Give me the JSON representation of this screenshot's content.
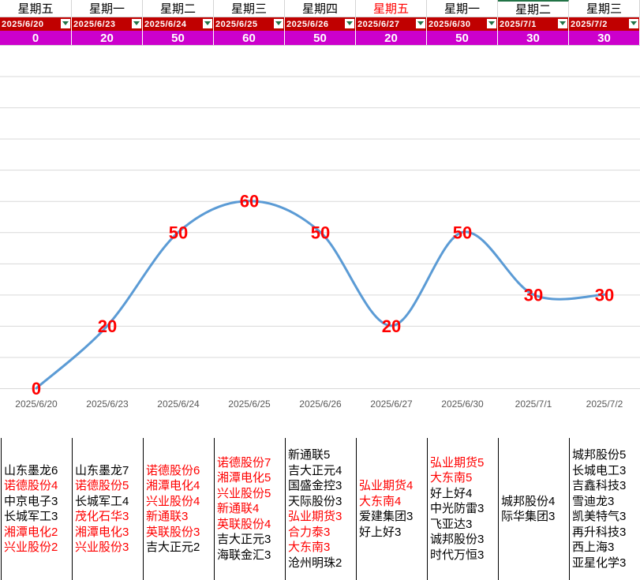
{
  "columns": [
    {
      "day": "星期五",
      "date": "2025/6/20",
      "value": 0,
      "day_color": "black"
    },
    {
      "day": "星期一",
      "date": "2025/6/23",
      "value": 20,
      "day_color": "black"
    },
    {
      "day": "星期二",
      "date": "2025/6/24",
      "value": 50,
      "day_color": "black"
    },
    {
      "day": "星期三",
      "date": "2025/6/25",
      "value": 60,
      "day_color": "black"
    },
    {
      "day": "星期四",
      "date": "2025/6/26",
      "value": 50,
      "day_color": "black"
    },
    {
      "day": "星期五",
      "date": "2025/6/27",
      "value": 20,
      "day_color": "red"
    },
    {
      "day": "星期一",
      "date": "2025/6/30",
      "value": 50,
      "day_color": "black"
    },
    {
      "day": "星期二",
      "date": "2025/7/1",
      "value": 30,
      "day_color": "black"
    },
    {
      "day": "星期三",
      "date": "2025/7/2",
      "value": 30,
      "day_color": "black"
    }
  ],
  "chart_data": {
    "type": "line",
    "categories": [
      "2025/6/20",
      "2025/6/23",
      "2025/6/24",
      "2025/6/25",
      "2025/6/26",
      "2025/6/27",
      "2025/6/30",
      "2025/7/1",
      "2025/7/2"
    ],
    "values": [
      0,
      20,
      50,
      60,
      50,
      20,
      50,
      30,
      30
    ],
    "data_labels": [
      "0",
      "20",
      "50",
      "60",
      "50",
      "20",
      "50",
      "30",
      "30"
    ],
    "ylim": [
      0,
      110
    ],
    "grid": true,
    "smooth": true,
    "line_color": "#5b9bd5",
    "label_color": "#ff0000"
  },
  "stock_lists": [
    [
      {
        "text": "山东墨龙6",
        "red": false
      },
      {
        "text": "诺德股份4",
        "red": true
      },
      {
        "text": "中京电子3",
        "red": false
      },
      {
        "text": "长城军工3",
        "red": false
      },
      {
        "text": "湘潭电化2",
        "red": true
      },
      {
        "text": "兴业股份2",
        "red": true
      }
    ],
    [
      {
        "text": "山东墨龙7",
        "red": false
      },
      {
        "text": "诺德股份5",
        "red": true
      },
      {
        "text": "长城军工4",
        "red": false
      },
      {
        "text": "茂化石华3",
        "red": true
      },
      {
        "text": "湘潭电化3",
        "red": true
      },
      {
        "text": "兴业股份3",
        "red": true
      }
    ],
    [
      {
        "text": "诺德股份6",
        "red": true
      },
      {
        "text": "湘潭电化4",
        "red": true
      },
      {
        "text": "兴业股份4",
        "red": true
      },
      {
        "text": "新通联3",
        "red": true
      },
      {
        "text": "英联股份3",
        "red": true
      },
      {
        "text": "吉大正元2",
        "red": false
      }
    ],
    [
      {
        "text": "诺德股份7",
        "red": true
      },
      {
        "text": "湘潭电化5",
        "red": true
      },
      {
        "text": "兴业股份5",
        "red": true
      },
      {
        "text": "新通联4",
        "red": true
      },
      {
        "text": "英联股份4",
        "red": true
      },
      {
        "text": "吉大正元3",
        "red": false
      },
      {
        "text": "海联金汇3",
        "red": false
      }
    ],
    [
      {
        "text": "新通联5",
        "red": false
      },
      {
        "text": "吉大正元4",
        "red": false
      },
      {
        "text": "国盛金控3",
        "red": false
      },
      {
        "text": "天际股份3",
        "red": false
      },
      {
        "text": "弘业期货3",
        "red": true
      },
      {
        "text": "合力泰3",
        "red": true
      },
      {
        "text": "大东南3",
        "red": true
      },
      {
        "text": "沧州明珠2",
        "red": false
      }
    ],
    [
      {
        "text": "弘业期货4",
        "red": true
      },
      {
        "text": "大东南4",
        "red": true
      },
      {
        "text": "爱建集团3",
        "red": false
      },
      {
        "text": "好上好3",
        "red": false
      }
    ],
    [
      {
        "text": "弘业期货5",
        "red": true
      },
      {
        "text": "大东南5",
        "red": true
      },
      {
        "text": "好上好4",
        "red": false
      },
      {
        "text": "中光防雷3",
        "red": false
      },
      {
        "text": "飞亚达3",
        "red": false
      },
      {
        "text": "诚邦股份3",
        "red": false
      },
      {
        "text": "时代万恒3",
        "red": false
      }
    ],
    [
      {
        "text": "城邦股份4",
        "red": false
      },
      {
        "text": "际华集团3",
        "red": false
      }
    ],
    [
      {
        "text": "城邦股份5",
        "red": false
      },
      {
        "text": "长城电工3",
        "red": false
      },
      {
        "text": "吉鑫科技3",
        "red": false
      },
      {
        "text": "雪迪龙3",
        "red": false
      },
      {
        "text": "凯美特气3",
        "red": false
      },
      {
        "text": "再升科技3",
        "red": false
      },
      {
        "text": "西上海3",
        "red": false
      },
      {
        "text": "亚星化学3",
        "red": false
      }
    ]
  ]
}
